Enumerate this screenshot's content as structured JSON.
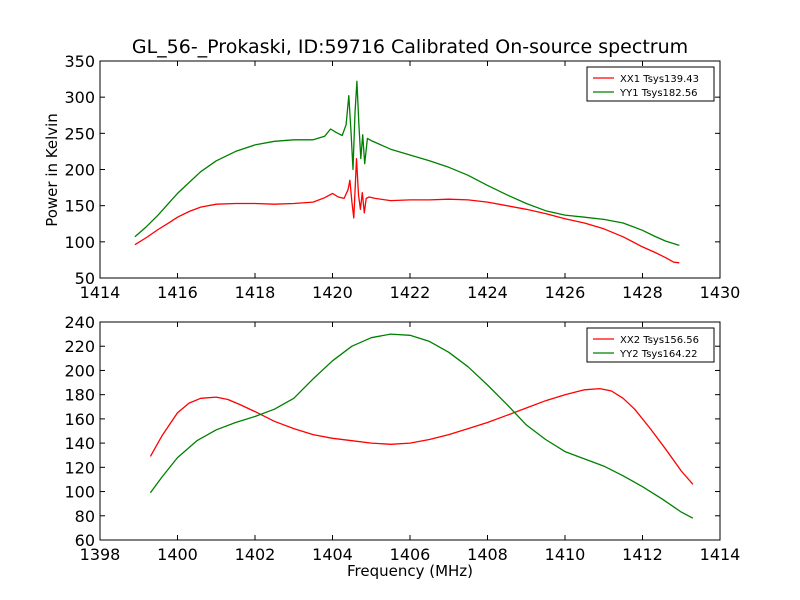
{
  "chart_data": [
    {
      "type": "line",
      "title": "GL_56-_Prokaski, ID:59716 Calibrated On-source spectrum",
      "xlabel": "",
      "ylabel": "Power in Kelvin",
      "xlim": [
        1414,
        1430
      ],
      "ylim": [
        50,
        350
      ],
      "xticks": [
        1414,
        1416,
        1418,
        1420,
        1422,
        1424,
        1426,
        1428,
        1430
      ],
      "yticks": [
        50,
        100,
        150,
        200,
        250,
        300,
        350
      ],
      "grid": false,
      "legend_position": "top-right",
      "series": [
        {
          "name": "XX1 Tsys139.43",
          "color": "#ff0000",
          "x": [
            1414.9,
            1415.2,
            1415.5,
            1415.8,
            1416.0,
            1416.3,
            1416.6,
            1417.0,
            1417.5,
            1418.0,
            1418.5,
            1419.0,
            1419.5,
            1419.8,
            1420.0,
            1420.15,
            1420.3,
            1420.4,
            1420.45,
            1420.5,
            1420.55,
            1420.62,
            1420.67,
            1420.72,
            1420.77,
            1420.82,
            1420.87,
            1420.95,
            1421.1,
            1421.5,
            1422.0,
            1422.5,
            1423.0,
            1423.5,
            1424.0,
            1424.5,
            1425.0,
            1425.5,
            1426.0,
            1426.5,
            1427.0,
            1427.5,
            1428.0,
            1428.3,
            1428.6,
            1428.8,
            1428.95
          ],
          "y": [
            96,
            106,
            117,
            127,
            134,
            142,
            148,
            152,
            153,
            153,
            152,
            153,
            155,
            161,
            167,
            162,
            160,
            172,
            185,
            155,
            133,
            215,
            165,
            145,
            168,
            140,
            160,
            162,
            160,
            157,
            158,
            158,
            159,
            158,
            155,
            150,
            145,
            139,
            132,
            126,
            118,
            107,
            93,
            86,
            78,
            72,
            71
          ]
        },
        {
          "name": "YY1 Tsys182.56",
          "color": "#008000",
          "x": [
            1414.9,
            1415.2,
            1415.5,
            1415.8,
            1416.0,
            1416.3,
            1416.6,
            1417.0,
            1417.5,
            1418.0,
            1418.5,
            1419.0,
            1419.5,
            1419.8,
            1419.95,
            1420.1,
            1420.25,
            1420.35,
            1420.42,
            1420.48,
            1420.53,
            1420.58,
            1420.63,
            1420.68,
            1420.73,
            1420.78,
            1420.83,
            1420.9,
            1421.0,
            1421.5,
            1422.0,
            1422.5,
            1423.0,
            1423.5,
            1424.0,
            1424.5,
            1425.0,
            1425.5,
            1426.0,
            1426.5,
            1427.0,
            1427.5,
            1428.0,
            1428.3,
            1428.6,
            1428.95
          ],
          "y": [
            107,
            121,
            137,
            155,
            167,
            182,
            197,
            212,
            225,
            234,
            239,
            241,
            241,
            246,
            256,
            251,
            247,
            262,
            302,
            250,
            200,
            278,
            322,
            262,
            215,
            248,
            208,
            243,
            240,
            228,
            220,
            212,
            203,
            192,
            178,
            165,
            153,
            143,
            137,
            134,
            131,
            126,
            116,
            108,
            101,
            95
          ]
        }
      ]
    },
    {
      "type": "line",
      "title": "",
      "xlabel": "Frequency (MHz)",
      "ylabel": "",
      "xlim": [
        1398,
        1414
      ],
      "ylim": [
        60,
        240
      ],
      "xticks": [
        1398,
        1400,
        1402,
        1404,
        1406,
        1408,
        1410,
        1412,
        1414
      ],
      "yticks": [
        60,
        80,
        100,
        120,
        140,
        160,
        180,
        200,
        220,
        240
      ],
      "grid": false,
      "legend_position": "top-right",
      "series": [
        {
          "name": "XX2 Tsys156.56",
          "color": "#ff0000",
          "x": [
            1399.3,
            1399.6,
            1400.0,
            1400.3,
            1400.6,
            1401.0,
            1401.3,
            1401.6,
            1402.0,
            1402.5,
            1403.0,
            1403.5,
            1404.0,
            1404.5,
            1405.0,
            1405.5,
            1406.0,
            1406.5,
            1407.0,
            1407.5,
            1408.0,
            1408.5,
            1409.0,
            1409.5,
            1410.0,
            1410.5,
            1410.9,
            1411.2,
            1411.5,
            1411.8,
            1412.2,
            1412.6,
            1413.0,
            1413.3
          ],
          "y": [
            129,
            146,
            165,
            173,
            177,
            178,
            176,
            172,
            166,
            158,
            152,
            147,
            144,
            142,
            140,
            139,
            140,
            143,
            147,
            152,
            157,
            163,
            169,
            175,
            180,
            184,
            185,
            183,
            177,
            168,
            152,
            135,
            117,
            106
          ]
        },
        {
          "name": "YY2 Tsys164.22",
          "color": "#008000",
          "x": [
            1399.3,
            1399.6,
            1400.0,
            1400.5,
            1401.0,
            1401.5,
            1402.0,
            1402.5,
            1403.0,
            1403.5,
            1404.0,
            1404.5,
            1405.0,
            1405.5,
            1406.0,
            1406.5,
            1407.0,
            1407.5,
            1408.0,
            1408.5,
            1409.0,
            1409.5,
            1410.0,
            1410.5,
            1411.0,
            1411.5,
            1412.0,
            1412.5,
            1413.0,
            1413.3
          ],
          "y": [
            99,
            112,
            128,
            142,
            151,
            157,
            162,
            168,
            177,
            193,
            208,
            220,
            227,
            230,
            229,
            224,
            215,
            203,
            188,
            172,
            155,
            143,
            133,
            127,
            121,
            113,
            104,
            94,
            83,
            78
          ]
        }
      ]
    }
  ]
}
